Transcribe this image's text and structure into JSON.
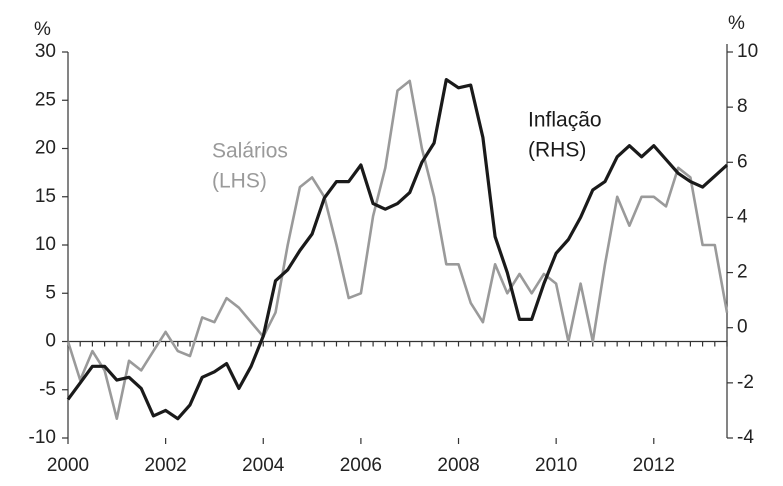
{
  "chart_data": {
    "type": "line",
    "y_unit": "%",
    "y2_unit": "%",
    "annotations": [
      {
        "lines": [
          "Salários",
          "(LHS)"
        ],
        "color": "#9a9a9a"
      },
      {
        "lines": [
          "Inflação",
          "(RHS)"
        ],
        "color": "#1a1a1a"
      }
    ],
    "x": [
      2000,
      2000.25,
      2000.5,
      2000.75,
      2001,
      2001.25,
      2001.5,
      2001.75,
      2002,
      2002.25,
      2002.5,
      2002.75,
      2003,
      2003.25,
      2003.5,
      2003.75,
      2004,
      2004.25,
      2004.5,
      2004.75,
      2005,
      2005.25,
      2005.5,
      2005.75,
      2006,
      2006.25,
      2006.5,
      2006.75,
      2007,
      2007.25,
      2007.5,
      2007.75,
      2008,
      2008.25,
      2008.5,
      2008.75,
      2009,
      2009.25,
      2009.5,
      2009.75,
      2010,
      2010.25,
      2010.5,
      2010.75,
      2011,
      2011.25,
      2011.5,
      2011.75,
      2012,
      2012.25,
      2012.5,
      2012.75,
      2013,
      2013.25,
      2013.5
    ],
    "series": [
      {
        "name": "Salários",
        "color": "#9a9a9a",
        "axis": "y",
        "values": [
          0,
          -4,
          -1,
          -3,
          -8,
          -2,
          -3,
          -1,
          1,
          -1,
          -1.5,
          2.5,
          2,
          4.5,
          3.5,
          2,
          0.5,
          3,
          10,
          16,
          17,
          15,
          10,
          4.5,
          5,
          13,
          18,
          26,
          27,
          20,
          15,
          8,
          8,
          4,
          2,
          8,
          5,
          7,
          5,
          7,
          6,
          0,
          6,
          0,
          8,
          15,
          12,
          15,
          15,
          14,
          18,
          17,
          10,
          10,
          3
        ]
      },
      {
        "name": "Inflação",
        "color": "#1a1a1a",
        "axis": "y2",
        "values": [
          -2.6,
          -2.0,
          -1.4,
          -1.4,
          -1.9,
          -1.8,
          -2.2,
          -3.2,
          -3.0,
          -3.3,
          -2.8,
          -1.8,
          -1.6,
          -1.3,
          -2.2,
          -1.4,
          -0.3,
          1.7,
          2.1,
          2.8,
          3.4,
          4.7,
          5.3,
          5.3,
          5.9,
          4.5,
          4.3,
          4.5,
          4.9,
          6.0,
          6.7,
          9.0,
          8.7,
          8.8,
          6.9,
          3.3,
          2.0,
          0.3,
          0.3,
          1.6,
          2.7,
          3.2,
          4.0,
          5.0,
          5.3,
          6.2,
          6.6,
          6.2,
          6.6,
          6.1,
          5.6,
          5.3,
          5.1,
          5.5,
          5.9
        ]
      }
    ],
    "xlim": [
      2000,
      2013.5
    ],
    "xticks": [
      2000,
      2002,
      2004,
      2006,
      2008,
      2010,
      2012
    ],
    "ylim": [
      -10,
      30
    ],
    "yticks": [
      -10,
      -5,
      0,
      5,
      10,
      15,
      20,
      25,
      30
    ],
    "y2lim": [
      -4,
      10
    ],
    "y2ticks": [
      -4,
      -2,
      0,
      2,
      4,
      6,
      8,
      10
    ]
  }
}
